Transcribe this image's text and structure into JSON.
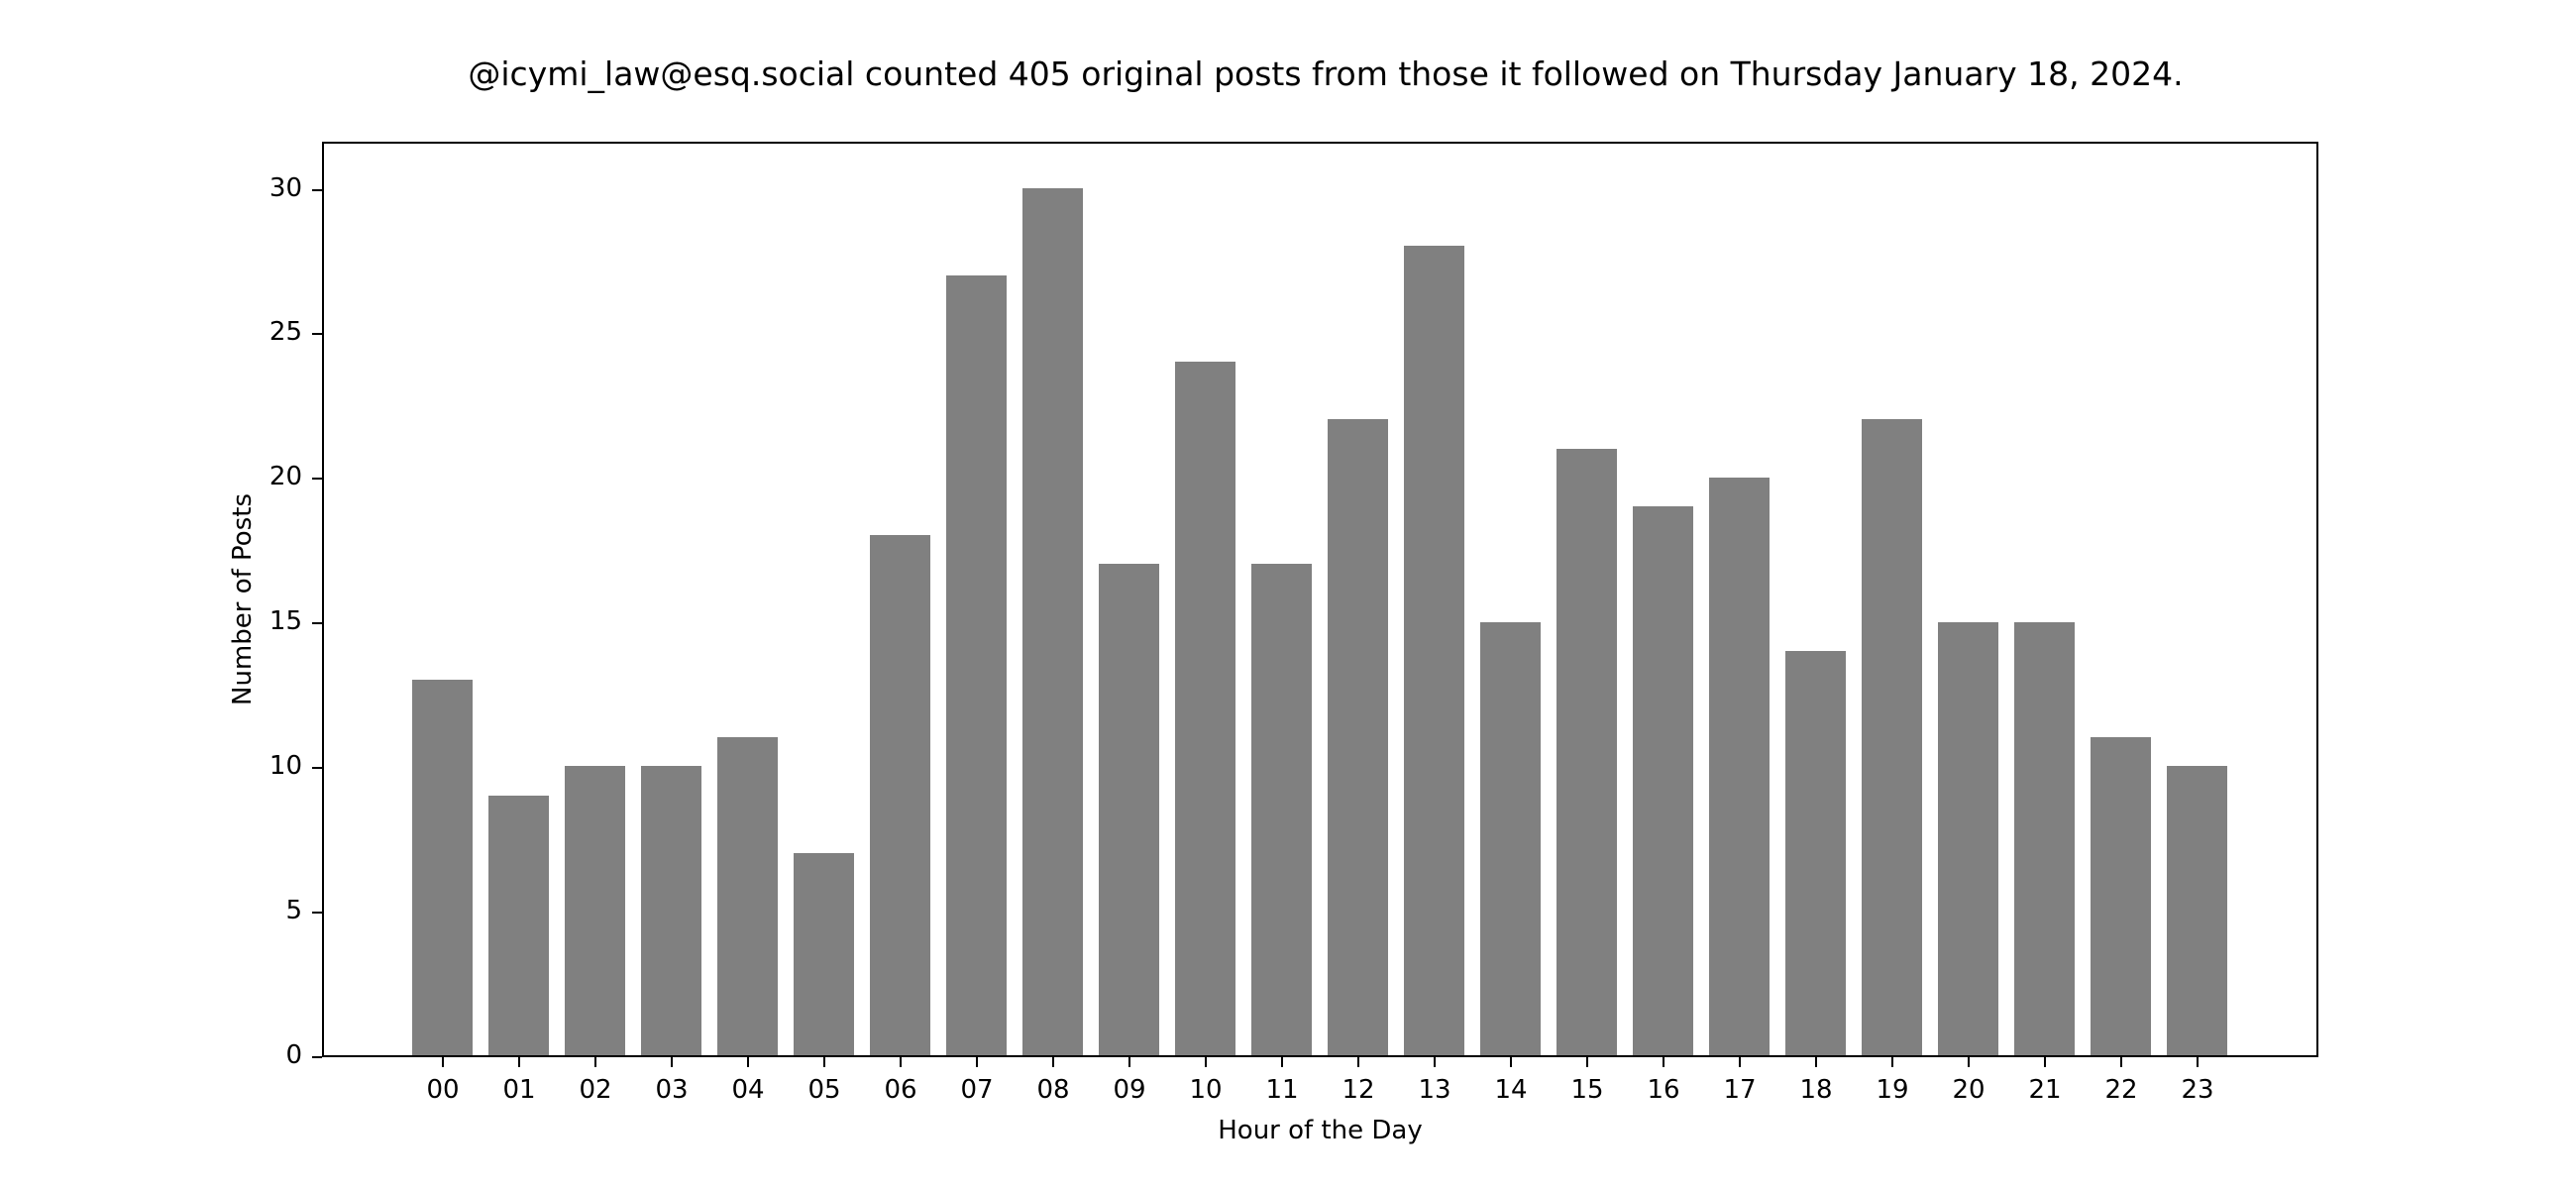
{
  "chart_data": {
    "type": "bar",
    "title": "@icymi_law@esq.social counted 405 original posts from those it followed on Thursday January 18, 2024.",
    "xlabel": "Hour of the Day",
    "ylabel": "Number of Posts",
    "categories": [
      "00",
      "01",
      "02",
      "03",
      "04",
      "05",
      "06",
      "07",
      "08",
      "09",
      "10",
      "11",
      "12",
      "13",
      "14",
      "15",
      "16",
      "17",
      "18",
      "19",
      "20",
      "21",
      "22",
      "23"
    ],
    "values": [
      13,
      9,
      10,
      10,
      11,
      7,
      18,
      27,
      30,
      17,
      24,
      17,
      22,
      28,
      15,
      21,
      19,
      20,
      14,
      22,
      15,
      15,
      11,
      10
    ],
    "yticks": [
      0,
      5,
      10,
      15,
      20,
      25,
      30
    ],
    "ylim": [
      0,
      31.6
    ],
    "grid": false,
    "bar_color": "#808080",
    "legend": null
  }
}
